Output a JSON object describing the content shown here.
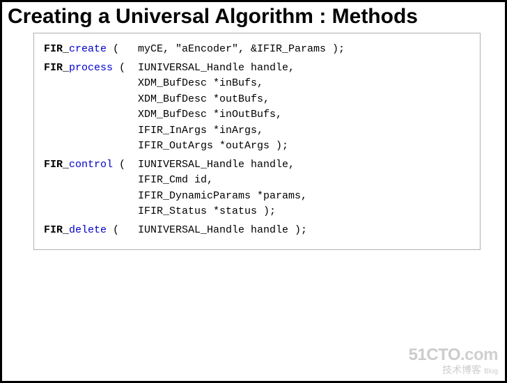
{
  "title": "Creating a Universal Algorithm : Methods",
  "methods": [
    {
      "prefix": "FIR_",
      "name": "create",
      "suffix": " (",
      "params": "myCE, \"aEncoder\", &IFIR_Params );"
    },
    {
      "prefix": "FIR_",
      "name": "process",
      "suffix": " (",
      "params": "IUNIVERSAL_Handle handle,\nXDM_BufDesc *inBufs,\nXDM_BufDesc *outBufs,\nXDM_BufDesc *inOutBufs,\nIFIR_InArgs *inArgs,\nIFIR_OutArgs *outArgs );"
    },
    {
      "prefix": "FIR_",
      "name": "control",
      "suffix": " (",
      "params": "IUNIVERSAL_Handle handle,\nIFIR_Cmd id,\nIFIR_DynamicParams *params,\nIFIR_Status *status );"
    },
    {
      "prefix": "FIR_",
      "name": "delete",
      "suffix": " (",
      "params": "IUNIVERSAL_Handle handle );"
    }
  ],
  "watermark": {
    "main_left": "51CTO",
    "main_right": ".com",
    "sub_left": "技术博客",
    "sub_right": "Blog"
  },
  "colors": {
    "border": "#000000",
    "method_name": "#0000cc",
    "prefix": "#000000",
    "box_border": "#b0b0b0",
    "watermark": "#cccccc",
    "background": "#ffffff"
  },
  "typography": {
    "title_fontsize": 30,
    "code_fontsize": 15,
    "code_font": "Courier New"
  }
}
